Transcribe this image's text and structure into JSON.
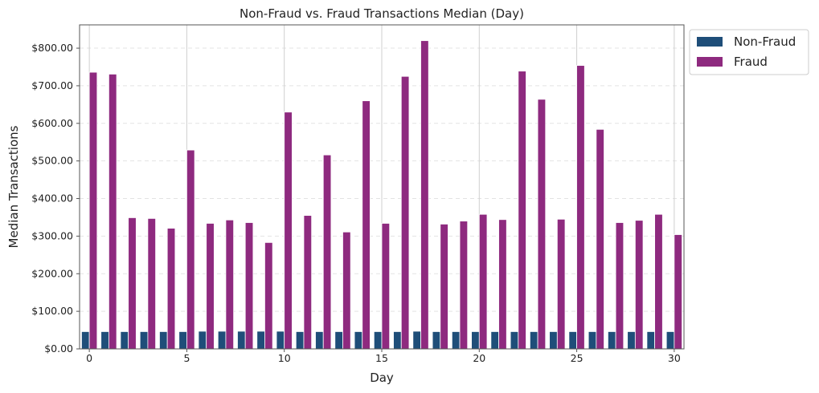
{
  "chart_data": {
    "type": "bar",
    "title": "Non-Fraud vs. Fraud Transactions Median (Day)",
    "xlabel": "Day",
    "ylabel": "Median Transactions",
    "categories": [
      0,
      1,
      2,
      3,
      4,
      5,
      6,
      7,
      8,
      9,
      10,
      11,
      12,
      13,
      14,
      15,
      16,
      17,
      18,
      19,
      20,
      21,
      22,
      23,
      24,
      25,
      26,
      27,
      28,
      29,
      30
    ],
    "x_ticks": [
      "0",
      "5",
      "10",
      "15",
      "20",
      "25",
      "30"
    ],
    "y_ticks": [
      "$0.00",
      "$100.00",
      "$200.00",
      "$300.00",
      "$400.00",
      "$500.00",
      "$600.00",
      "$700.00",
      "$800.00"
    ],
    "ylim": [
      0,
      862
    ],
    "grid": true,
    "legend_position": "outside-top-right",
    "series": [
      {
        "name": "Non-Fraud",
        "color": "#1f4e79",
        "values": [
          46,
          46,
          46,
          46,
          46,
          46,
          47,
          47,
          47,
          47,
          47,
          46,
          46,
          46,
          46,
          46,
          46,
          47,
          46,
          46,
          46,
          46,
          46,
          46,
          46,
          46,
          46,
          46,
          46,
          46,
          46
        ]
      },
      {
        "name": "Fraud",
        "color": "#8e2a7f",
        "values": [
          736,
          731,
          349,
          347,
          321,
          529,
          334,
          343,
          336,
          283,
          630,
          355,
          516,
          311,
          660,
          334,
          725,
          820,
          332,
          340,
          358,
          344,
          739,
          664,
          345,
          754,
          584,
          336,
          342,
          358,
          304
        ]
      }
    ]
  }
}
